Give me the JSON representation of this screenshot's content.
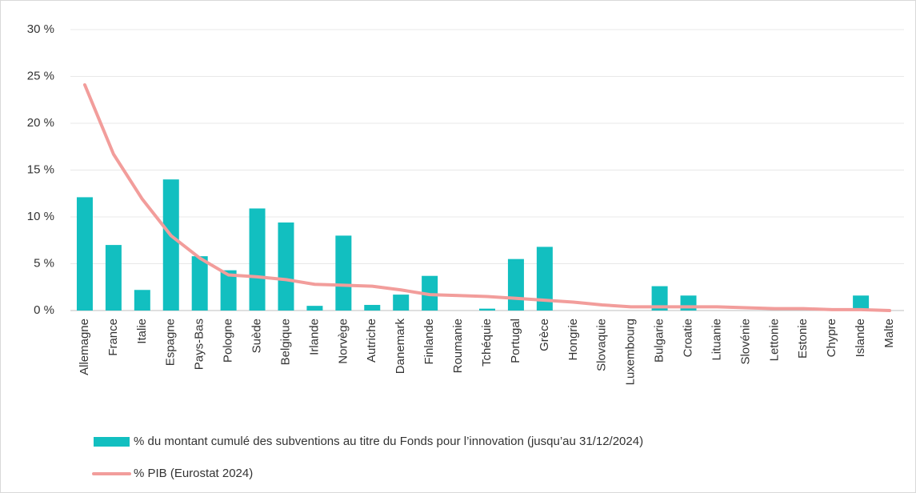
{
  "chart_data": {
    "type": "bar_line",
    "categories": [
      "Allemagne",
      "France",
      "Italie",
      "Espagne",
      "Pays-Bas",
      "Pologne",
      "Suède",
      "Belgique",
      "Irlande",
      "Norvège",
      "Autriche",
      "Danemark",
      "Finlande",
      "Roumanie",
      "Tchéquie",
      "Portugal",
      "Grèce",
      "Hongrie",
      "Slovaquie",
      "Luxembourg",
      "Bulgarie",
      "Croatie",
      "Lituanie",
      "Slovénie",
      "Lettonie",
      "Estonie",
      "Chypre",
      "Islande",
      "Malte"
    ],
    "series": [
      {
        "name": "% du montant cumulé des subventions au titre du Fonds pour l’innovation (jusqu’au 31/12/2024)",
        "type": "bar",
        "color": "#12bfc0",
        "values": [
          12.1,
          7.0,
          2.2,
          14.0,
          5.8,
          4.3,
          10.9,
          9.4,
          0.5,
          8.0,
          0.6,
          1.7,
          3.7,
          0,
          0.2,
          5.5,
          6.8,
          0,
          0,
          0,
          2.6,
          1.6,
          0,
          0,
          0,
          0,
          0,
          1.6,
          0
        ]
      },
      {
        "name": "% PIB (Eurostat 2024)",
        "type": "line",
        "color": "#f29d9b",
        "values": [
          24.1,
          16.7,
          11.9,
          8.0,
          5.6,
          3.8,
          3.6,
          3.3,
          2.8,
          2.7,
          2.6,
          2.2,
          1.7,
          1.6,
          1.5,
          1.3,
          1.1,
          0.9,
          0.6,
          0.4,
          0.4,
          0.4,
          0.4,
          0.3,
          0.2,
          0.2,
          0.1,
          0.1,
          0.0
        ]
      }
    ],
    "ylim": [
      0,
      30
    ],
    "yticks": [
      {
        "value": 0,
        "label": "0 %"
      },
      {
        "value": 5,
        "label": "5 %"
      },
      {
        "value": 10,
        "label": "10 %"
      },
      {
        "value": 15,
        "label": "15 %"
      },
      {
        "value": 20,
        "label": "20 %"
      },
      {
        "value": 25,
        "label": "25 %"
      },
      {
        "value": 30,
        "label": "30 %"
      }
    ],
    "grid": true
  }
}
